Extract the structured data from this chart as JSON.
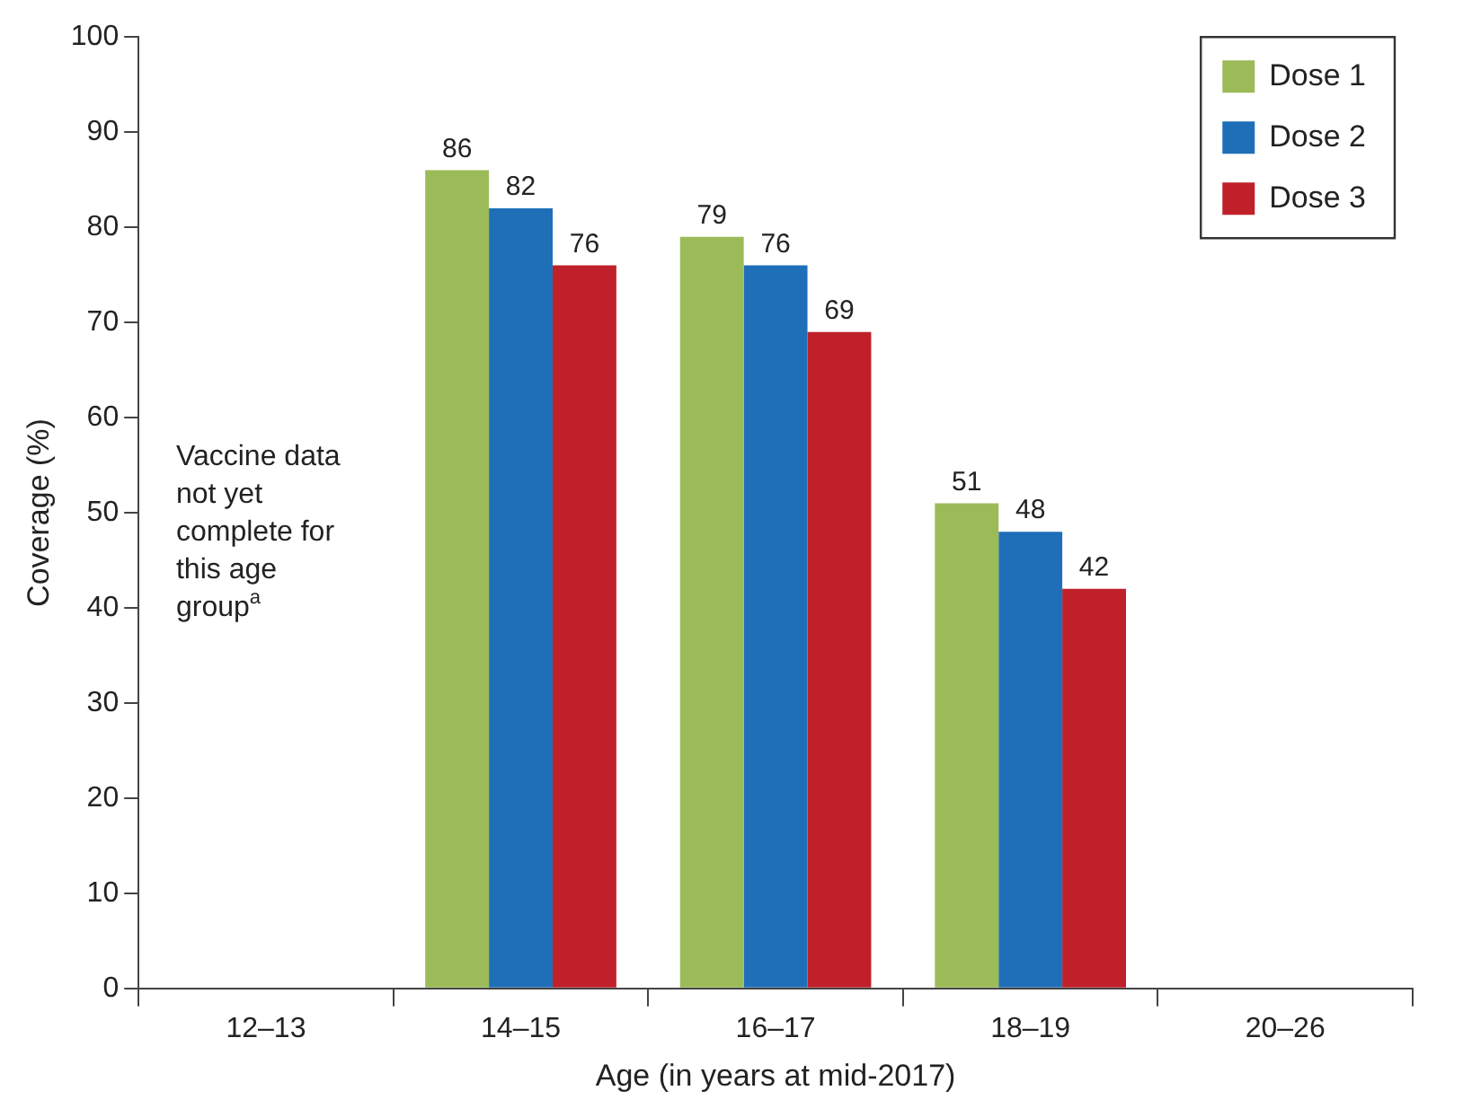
{
  "chart_data": {
    "type": "bar",
    "xlabel": "Age (in years at mid-2017)",
    "ylabel": "Coverage (%)",
    "categories": [
      "12–13",
      "14–15",
      "16–17",
      "18–19",
      "20–26"
    ],
    "series": [
      {
        "name": "Dose 1",
        "color": "#9bbb59",
        "values": [
          null,
          86,
          79,
          51,
          null
        ]
      },
      {
        "name": "Dose 2",
        "color": "#1f6fb8",
        "values": [
          null,
          82,
          76,
          48,
          null
        ]
      },
      {
        "name": "Dose 3",
        "color": "#c0202a",
        "values": [
          null,
          76,
          69,
          42,
          null
        ]
      }
    ],
    "ylim": [
      0,
      100
    ],
    "yticks": [
      0,
      10,
      20,
      30,
      40,
      50,
      60,
      70,
      80,
      90,
      100
    ],
    "grid": false,
    "legend": "top right",
    "data_labels": true,
    "annotations": [
      "Vaccine data not yet complete for this age group$^{a}$"
    ]
  }
}
